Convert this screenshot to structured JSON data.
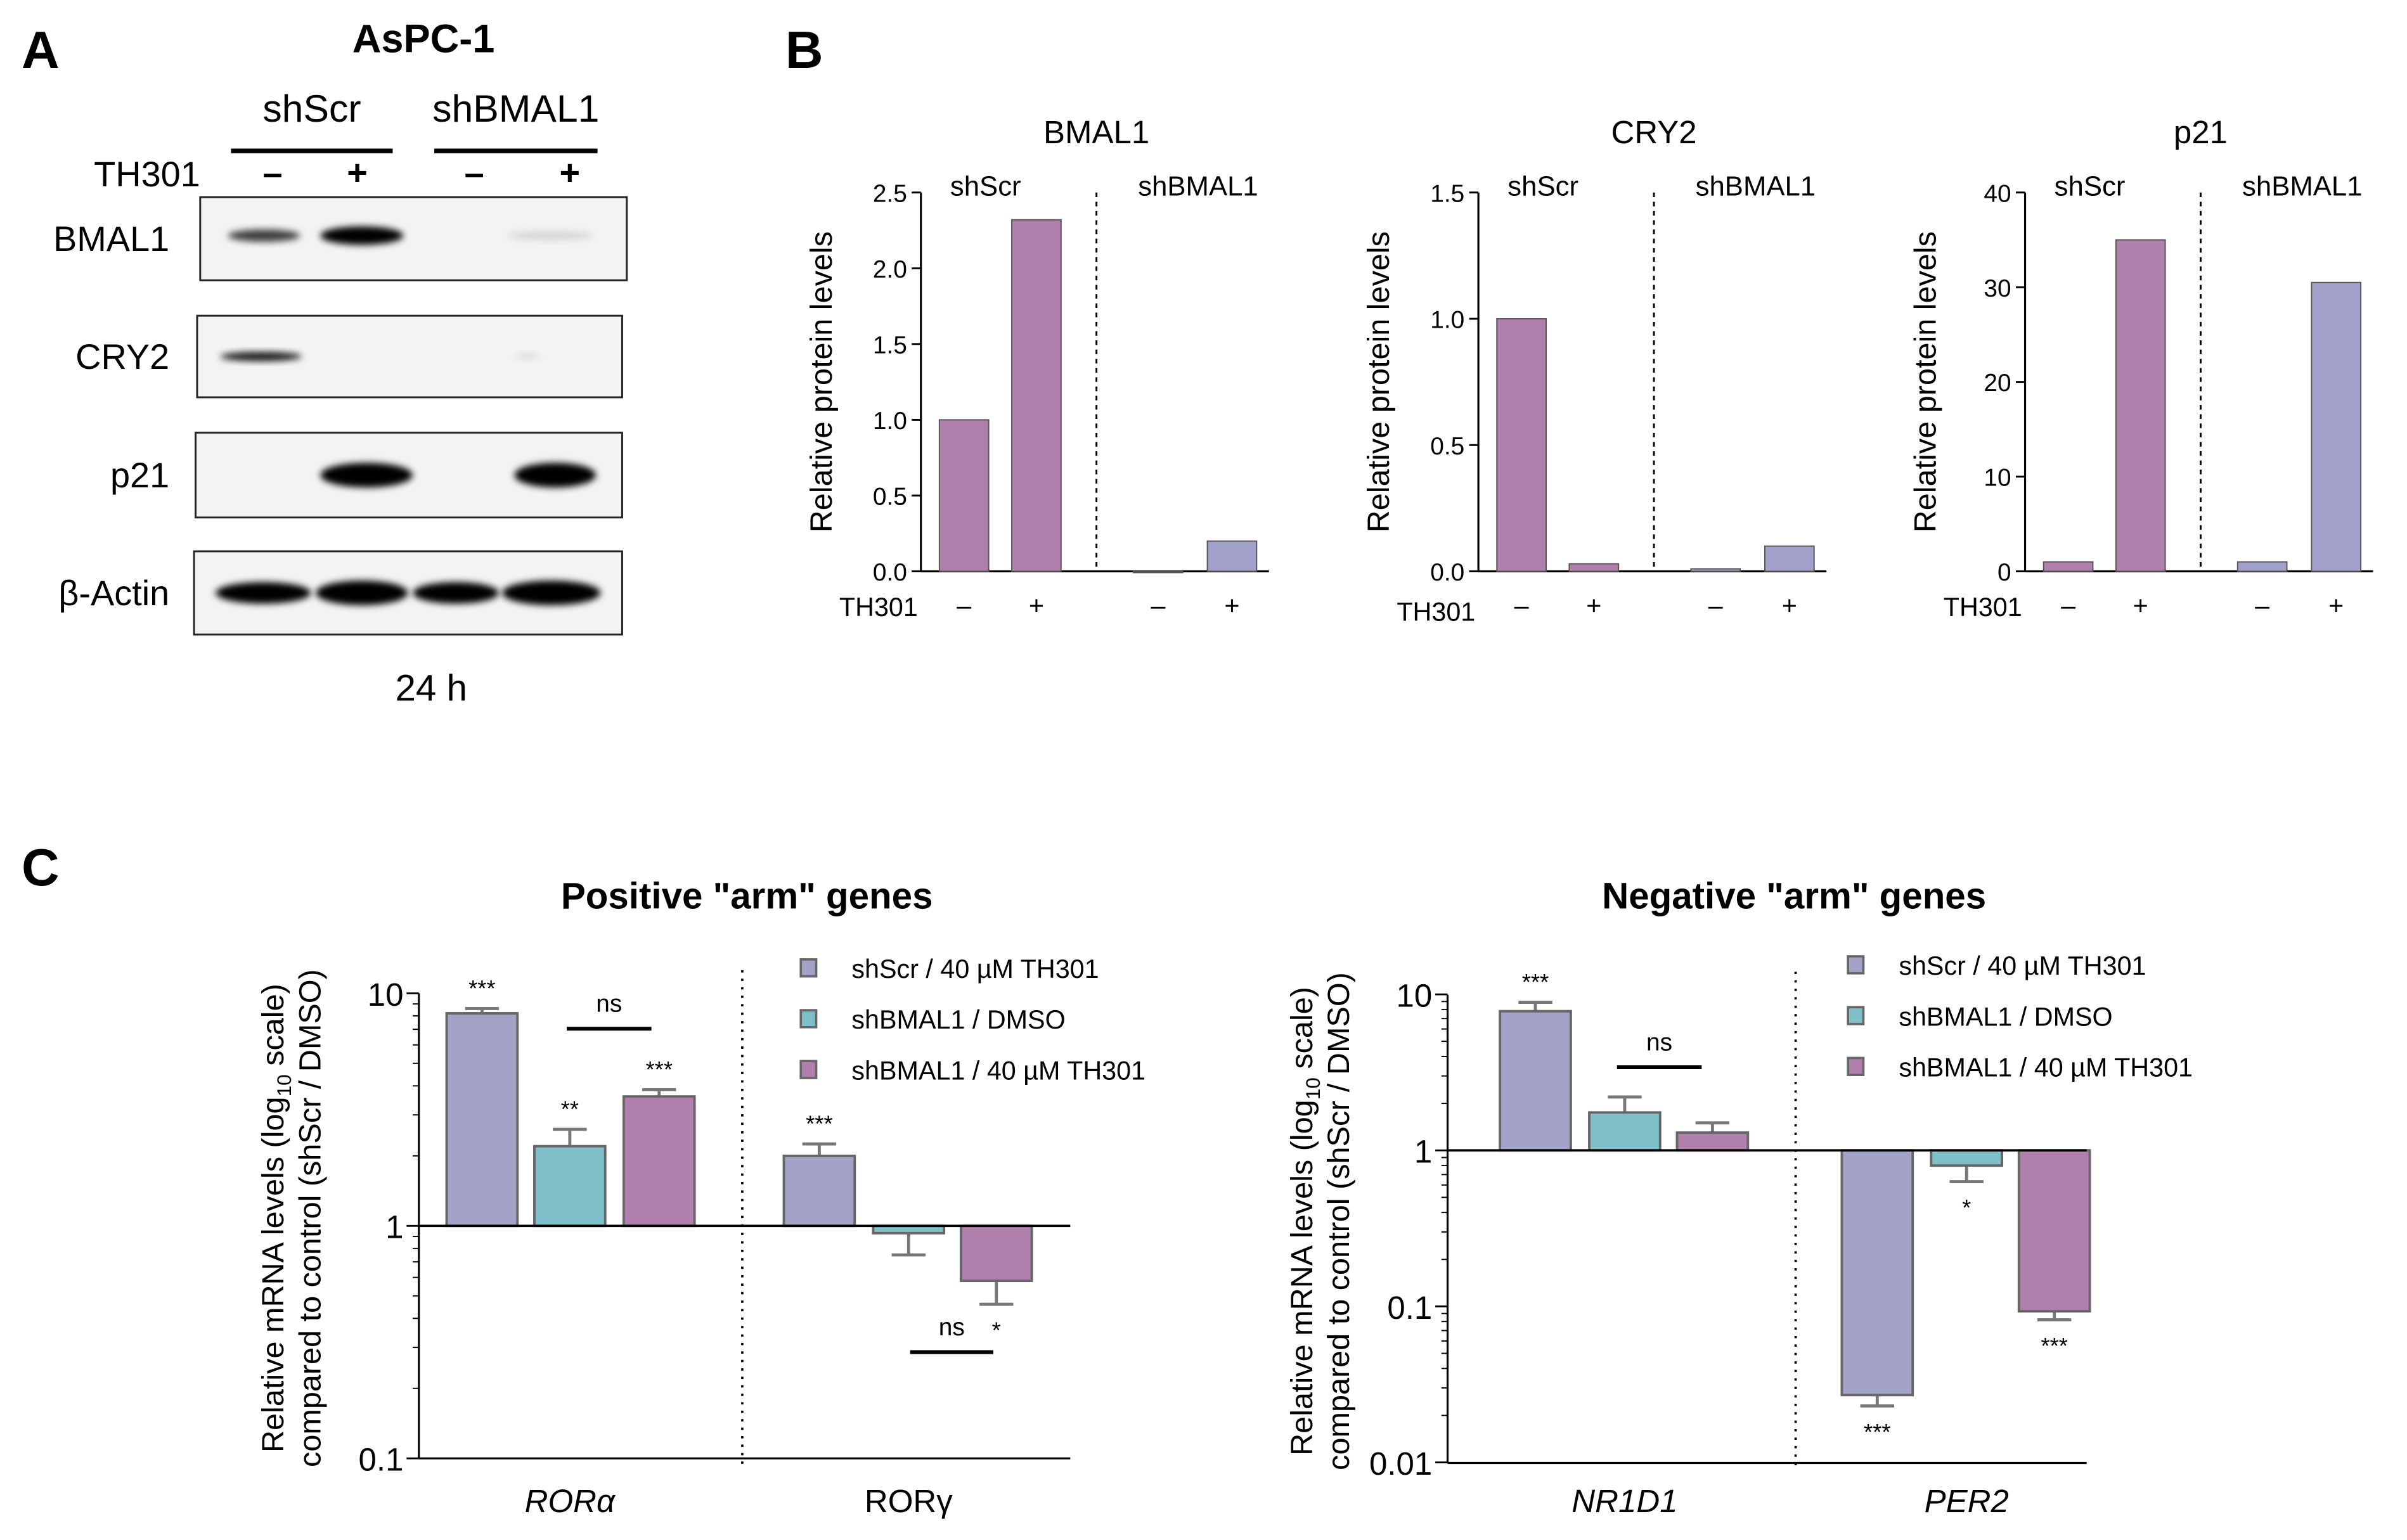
{
  "panel_a": {
    "letter": "A",
    "title": "AsPC-1",
    "groups": [
      "shScr",
      "shBMAL1"
    ],
    "treatment_label": "TH301",
    "treatment_signs": [
      "–",
      "+",
      "–",
      "+"
    ],
    "blots": [
      "BMAL1",
      "CRY2",
      "p21",
      "β-Actin"
    ],
    "time": "24 h"
  },
  "panel_b": {
    "letter": "B",
    "group_labels": [
      "shScr",
      "shBMAL1"
    ],
    "treatment_label": "TH301",
    "treatment_signs": [
      "–",
      "+",
      "–",
      "+"
    ],
    "ylabel": "Relative protein levels"
  },
  "panel_c": {
    "letter": "C",
    "ylabel_line1_a": "Relative mRNA levels (log",
    "ylabel_line1_sub": "10",
    "ylabel_line1_b": " scale)",
    "ylabel_line2": "compared to control (shScr / DMSO)",
    "legend": [
      "shScr / 40 µM TH301",
      "shBMAL1 / DMSO",
      "shBMAL1 / 40 µM TH301"
    ]
  },
  "colors": {
    "shscr_th301": "#a3a3c8",
    "shbmal1_dmso": "#7fbfca",
    "shbmal1_th301": "#b07fac",
    "blot_shscr": "#b07fab",
    "blot_shbmal1": "#a0a0c8"
  },
  "chart_data": [
    {
      "type": "bar",
      "title": "BMAL1",
      "ylabel": "Relative protein levels",
      "ylim": [
        0,
        2.5
      ],
      "yticks": [
        "0.0",
        "0.5",
        "1.0",
        "1.5",
        "2.0",
        "2.5"
      ],
      "ytick_values": [
        0,
        0.5,
        1,
        1.5,
        2,
        2.5
      ],
      "categories": [
        "shScr –",
        "shScr +",
        "shBMAL1 –",
        "shBMAL1 +"
      ],
      "values": [
        1.0,
        2.32,
        0.0,
        0.2
      ]
    },
    {
      "type": "bar",
      "title": "CRY2",
      "ylabel": "Relative protein levels",
      "ylim": [
        0,
        1.5
      ],
      "yticks": [
        "0.0",
        "0.5",
        "1.0",
        "1.5"
      ],
      "ytick_values": [
        0,
        0.5,
        1,
        1.5
      ],
      "categories": [
        "shScr –",
        "shScr +",
        "shBMAL1 –",
        "shBMAL1 +"
      ],
      "values": [
        1.0,
        0.03,
        0.01,
        0.1
      ]
    },
    {
      "type": "bar",
      "title": "p21",
      "ylabel": "Relative protein levels",
      "ylim": [
        0,
        40
      ],
      "yticks": [
        "0",
        "10",
        "20",
        "30",
        "40"
      ],
      "ytick_values": [
        0,
        10,
        20,
        30,
        40
      ],
      "categories": [
        "shScr –",
        "shScr +",
        "shBMAL1 –",
        "shBMAL1 +"
      ],
      "values": [
        1.0,
        35.0,
        1.0,
        30.5
      ]
    },
    {
      "type": "bar",
      "title": "Positive \"arm\" genes",
      "yscale": "log10",
      "ylim": [
        0.1,
        10
      ],
      "yticks": [
        "0.1",
        "1",
        "10"
      ],
      "ytick_values": [
        0.1,
        1,
        10
      ],
      "categories": [
        "RORα",
        "RORγ"
      ],
      "category_italic": [
        true,
        false
      ],
      "series": [
        {
          "name": "shScr / 40 µM TH301",
          "values": [
            8.2,
            2.0
          ],
          "error": [
            8.6,
            2.25
          ],
          "sig": [
            "***",
            "***"
          ]
        },
        {
          "name": "shBMAL1 / DMSO",
          "values": [
            2.2,
            0.93
          ],
          "error": [
            2.6,
            0.75
          ],
          "sig": [
            "**",
            ""
          ]
        },
        {
          "name": "shBMAL1 / 40 µM TH301",
          "values": [
            3.6,
            0.58
          ],
          "error": [
            3.85,
            0.46
          ],
          "sig": [
            "***",
            "*"
          ]
        }
      ],
      "ns_comparisons": [
        {
          "category": "RORα",
          "label": "ns"
        },
        {
          "category": "RORγ",
          "label": "ns"
        }
      ]
    },
    {
      "type": "bar",
      "title": "Negative \"arm\" genes",
      "yscale": "log10",
      "ylim": [
        0.01,
        10
      ],
      "yticks": [
        "0.01",
        "0.1",
        "1",
        "10"
      ],
      "ytick_values": [
        0.01,
        0.1,
        1,
        10
      ],
      "categories": [
        "NR1D1",
        "PER2"
      ],
      "category_italic": [
        true,
        true
      ],
      "series": [
        {
          "name": "shScr / 40 µM TH301",
          "values": [
            7.8,
            0.027
          ],
          "error": [
            8.9,
            0.023
          ],
          "sig": [
            "***",
            "***"
          ]
        },
        {
          "name": "shBMAL1 / DMSO",
          "values": [
            1.75,
            0.8
          ],
          "error": [
            2.2,
            0.63
          ],
          "sig": [
            "",
            "*"
          ]
        },
        {
          "name": "shBMAL1 / 40 µM TH301",
          "values": [
            1.3,
            0.093
          ],
          "error": [
            1.5,
            0.082
          ],
          "sig": [
            "",
            "***"
          ]
        }
      ],
      "ns_comparisons": [
        {
          "category": "NR1D1",
          "label": "ns"
        }
      ]
    }
  ]
}
